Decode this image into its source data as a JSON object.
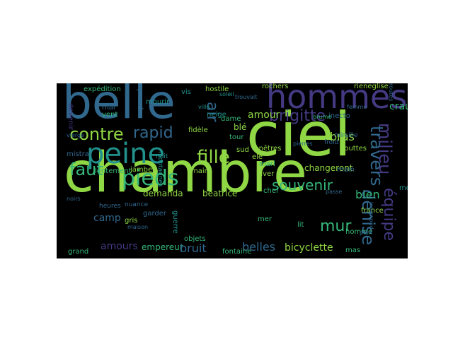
{
  "wordcloud": {
    "background": "#000000",
    "palette": {
      "lime": "#8fd744",
      "green": "#35b779",
      "teal": "#21918c",
      "blue": "#31688e",
      "indigo": "#443a83",
      "purple": "#440154",
      "yellow": "#fde725"
    },
    "words": [
      {
        "text": "ciel",
        "color": "#8fd744",
        "weight": "xl"
      },
      {
        "text": "chambre",
        "color": "#8fd744",
        "weight": "xl"
      },
      {
        "text": "belle",
        "color": "#31688e",
        "weight": "xl"
      },
      {
        "text": "hommes",
        "color": "#443a83",
        "weight": "l"
      },
      {
        "text": "peine",
        "color": "#21918c",
        "weight": "l"
      },
      {
        "text": "pieds",
        "color": "#35b779",
        "weight": "l"
      },
      {
        "text": "fille",
        "color": "#8fd744",
        "weight": "m"
      },
      {
        "text": "brigitte",
        "color": "#443a83",
        "weight": "m"
      },
      {
        "text": "travers",
        "color": "#31688e",
        "weight": "m"
      },
      {
        "text": "milieu",
        "color": "#443a83",
        "weight": "m"
      },
      {
        "text": "denise",
        "color": "#31688e",
        "weight": "m"
      },
      {
        "text": "équipe",
        "color": "#443a83",
        "weight": "m"
      },
      {
        "text": "contre",
        "color": "#8fd744",
        "weight": "m"
      },
      {
        "text": "rapid",
        "color": "#31688e",
        "weight": "m"
      },
      {
        "text": "faut",
        "color": "#35b779",
        "weight": "m"
      },
      {
        "text": "souvenir",
        "color": "#35b779",
        "weight": "m"
      },
      {
        "text": "mur",
        "color": "#35b779",
        "weight": "m"
      },
      {
        "text": "air",
        "color": "#31688e",
        "weight": "m"
      },
      {
        "text": "bras",
        "color": "#8fd744",
        "weight": "s"
      },
      {
        "text": "belles",
        "color": "#31688e",
        "weight": "s"
      },
      {
        "text": "bicyclette",
        "color": "#8fd744",
        "weight": "s"
      },
      {
        "text": "amours",
        "color": "#443a83",
        "weight": "s"
      },
      {
        "text": "amour",
        "color": "#8fd744",
        "weight": "s"
      },
      {
        "text": "crau",
        "color": "#35b779",
        "weight": "s"
      },
      {
        "text": "changeront",
        "color": "#8fd744",
        "weight": "s"
      },
      {
        "text": "bien",
        "color": "#35b779",
        "weight": "s"
      },
      {
        "text": "camp",
        "color": "#31688e",
        "weight": "s"
      },
      {
        "text": "demanda",
        "color": "#8fd744",
        "weight": "s"
      },
      {
        "text": "béatrice",
        "color": "#8fd744",
        "weight": "s"
      },
      {
        "text": "empereur",
        "color": "#35b779",
        "weight": "s"
      },
      {
        "text": "bruit",
        "color": "#31688e",
        "weight": "s"
      },
      {
        "text": "fenêtres",
        "color": "#8fd744",
        "weight": "xs"
      },
      {
        "text": "blé",
        "color": "#8fd744",
        "weight": "xs"
      },
      {
        "text": "fidèle",
        "color": "#8fd744",
        "weight": "xs"
      },
      {
        "text": "dame",
        "color": "#35b779",
        "weight": "xs"
      },
      {
        "text": "hostile",
        "color": "#8fd744",
        "weight": "xs"
      },
      {
        "text": "expédition",
        "color": "#35b779",
        "weight": "xs"
      },
      {
        "text": "devenir",
        "color": "#443a83",
        "weight": "xs"
      },
      {
        "text": "mistral",
        "color": "#31688e",
        "weight": "xs"
      },
      {
        "text": "lentement",
        "color": "#35b779",
        "weight": "xs"
      },
      {
        "text": "jambes",
        "color": "#8fd744",
        "weight": "xs"
      },
      {
        "text": "ele",
        "color": "#8fd744",
        "weight": "xs"
      },
      {
        "text": "hiver",
        "color": "#8fd744",
        "weight": "xs"
      },
      {
        "text": "mari",
        "color": "#35b779",
        "weight": "xs"
      },
      {
        "text": "chef",
        "color": "#35b779",
        "weight": "xs"
      },
      {
        "text": "mains",
        "color": "#8fd744",
        "weight": "xs"
      },
      {
        "text": "gouttes",
        "color": "#8fd744",
        "weight": "xs"
      },
      {
        "text": "main",
        "color": "#31688e",
        "weight": "xs"
      },
      {
        "text": "monde",
        "color": "#21918c",
        "weight": "xs"
      },
      {
        "text": "gris",
        "color": "#8fd744",
        "weight": "xs"
      },
      {
        "text": "mer",
        "color": "#35b779",
        "weight": "xs"
      },
      {
        "text": "lit",
        "color": "#35b779",
        "weight": "xs"
      },
      {
        "text": "france",
        "color": "#8fd744",
        "weight": "xs"
      },
      {
        "text": "homme",
        "color": "#35b779",
        "weight": "xs"
      },
      {
        "text": "grand",
        "color": "#35b779",
        "weight": "xs"
      },
      {
        "text": "fontaine",
        "color": "#35b779",
        "weight": "xs"
      },
      {
        "text": "mas",
        "color": "#35b779",
        "weight": "xs"
      },
      {
        "text": "inecto",
        "color": "#31688e",
        "weight": "xs"
      },
      {
        "text": "rieneglise",
        "color": "#8fd744",
        "weight": "xs"
      },
      {
        "text": "rochers",
        "color": "#8fd744",
        "weight": "xs"
      },
      {
        "text": "routes",
        "color": "#31688e",
        "weight": "xs"
      },
      {
        "text": "longwood",
        "color": "#31688e",
        "weight": "xs"
      },
      {
        "text": "femme",
        "color": "#31688e",
        "weight": "xs"
      },
      {
        "text": "mourir",
        "color": "#21918c",
        "weight": "xs"
      },
      {
        "text": "mal",
        "color": "#31688e",
        "weight": "xs"
      },
      {
        "text": "vent",
        "color": "#35b779",
        "weight": "xs"
      },
      {
        "text": "vis",
        "color": "#21918c",
        "weight": "xs"
      },
      {
        "text": "tour",
        "color": "#35b779",
        "weight": "xs"
      },
      {
        "text": "sud",
        "color": "#8fd744",
        "weight": "xs"
      },
      {
        "text": "prend",
        "color": "#31688e",
        "weight": "xs"
      },
      {
        "text": "garder",
        "color": "#31688e",
        "weight": "xs"
      },
      {
        "text": "guerre",
        "color": "#21918c",
        "weight": "xs"
      },
      {
        "text": "mireille",
        "color": "#31688e",
        "weight": "xs"
      },
      {
        "text": "neige",
        "color": "#21918c",
        "weight": "xs"
      },
      {
        "text": "objets",
        "color": "#35b779",
        "weight": "xs"
      },
      {
        "text": "noirs",
        "color": "#31688e",
        "weight": "xs"
      },
      {
        "text": "montagnes",
        "color": "#21918c",
        "weight": "xs"
      },
      {
        "text": "vierge",
        "color": "#31688e",
        "weight": "xs"
      },
      {
        "text": "trouvait",
        "color": "#31688e",
        "weight": "xs"
      },
      {
        "text": "brume",
        "color": "#35b779",
        "weight": "xs"
      },
      {
        "text": "plan",
        "color": "#31688e",
        "weight": "xs"
      },
      {
        "text": "nuance",
        "color": "#31688e",
        "weight": "xs"
      },
      {
        "text": "passe",
        "color": "#31688e",
        "weight": "xs"
      },
      {
        "text": "froid",
        "color": "#31688e",
        "weight": "xs"
      },
      {
        "text": "pierres",
        "color": "#31688e",
        "weight": "xs"
      },
      {
        "text": "nuit",
        "color": "#21918c",
        "weight": "xs"
      },
      {
        "text": "heures",
        "color": "#31688e",
        "weight": "xs"
      },
      {
        "text": "soleil",
        "color": "#21918c",
        "weight": "xs"
      },
      {
        "text": "maison",
        "color": "#31688e",
        "weight": "xs"
      },
      {
        "text": "ville",
        "color": "#21918c",
        "weight": "xs"
      },
      {
        "text": "blanc",
        "color": "#31688e",
        "weight": "xs"
      }
    ]
  }
}
